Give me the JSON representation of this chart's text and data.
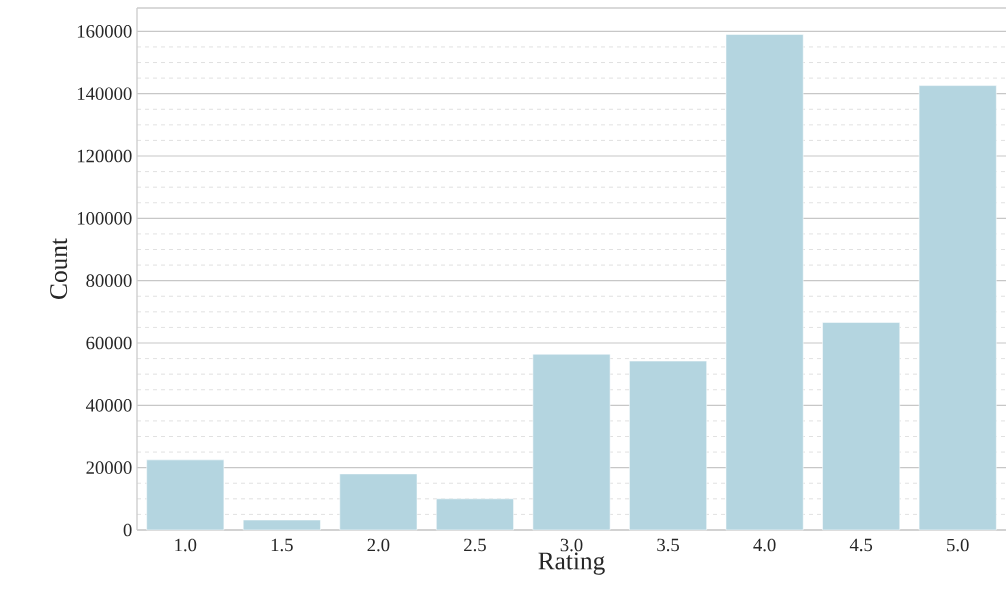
{
  "chart_data": {
    "type": "bar",
    "xlabel": "Rating",
    "ylabel": "Count",
    "categories": [
      "1.0",
      "1.5",
      "2.0",
      "2.5",
      "3.0",
      "3.5",
      "4.0",
      "4.5",
      "5.0"
    ],
    "values": [
      22500,
      3200,
      18000,
      10000,
      56400,
      54200,
      159000,
      66600,
      142600
    ],
    "color": "#b4d5e0",
    "ylim": [
      0,
      167500
    ],
    "yticks": [
      0,
      20000,
      40000,
      60000,
      80000,
      100000,
      120000,
      140000,
      160000
    ],
    "grid": "y"
  }
}
